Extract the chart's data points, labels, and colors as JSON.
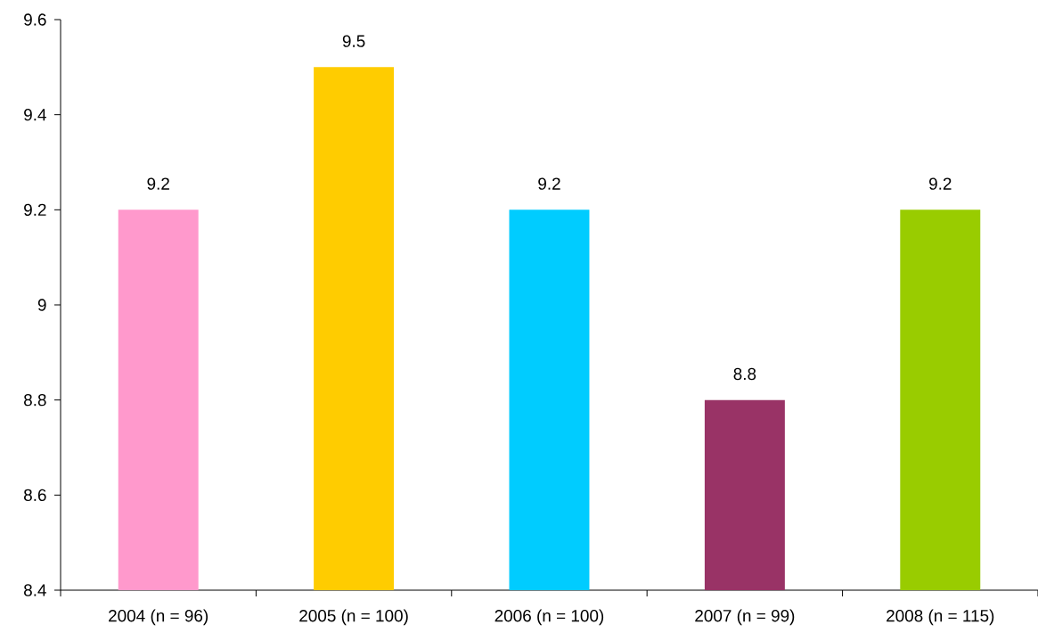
{
  "chart_data": {
    "type": "bar",
    "categories": [
      "2004 (n = 96)",
      "2005 (n = 100)",
      "2006 (n = 100)",
      "2007 (n = 99)",
      "2008 (n = 115)"
    ],
    "values": [
      9.2,
      9.5,
      9.2,
      8.8,
      9.2
    ],
    "colors": [
      "#ff99cc",
      "#ffcc00",
      "#00ccff",
      "#993366",
      "#99cc00"
    ],
    "ylim": [
      8.4,
      9.6
    ],
    "yticks": [
      8.4,
      8.6,
      8.8,
      9,
      9.2,
      9.4,
      9.6
    ],
    "data_labels": true,
    "grid": false
  }
}
